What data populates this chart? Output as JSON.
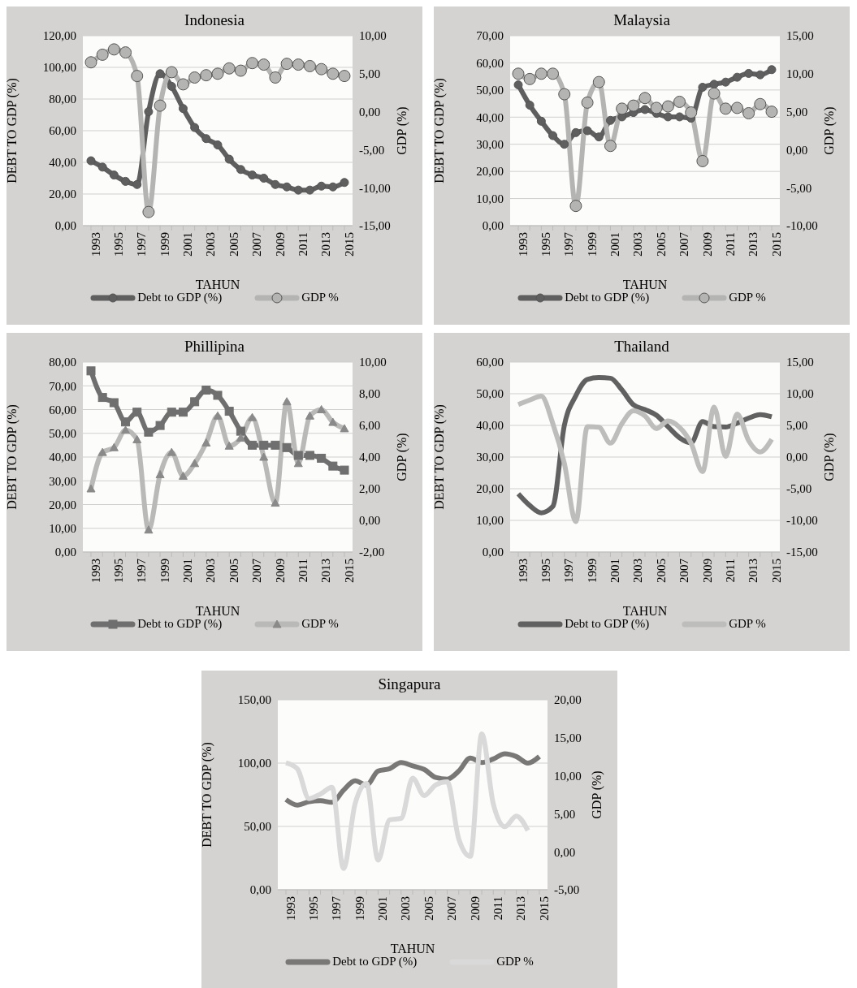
{
  "chart_data": [
    {
      "type": "line",
      "title": "Indonesia",
      "xlabel": "TAHUN",
      "ylabel": "DEBT TO GDP (%)",
      "y2label": "GDP (%)",
      "grid": "y",
      "legend": "bottom",
      "categories": [
        "1993",
        null,
        "1995",
        null,
        "1997",
        null,
        "1999",
        null,
        "2001",
        null,
        "2003",
        null,
        "2005",
        null,
        "2007",
        null,
        "2009",
        null,
        "2011",
        null,
        "2013",
        null,
        "2015"
      ],
      "ylim": [
        0,
        120
      ],
      "yticks": [
        {
          "value": 0,
          "label": "0,00"
        },
        {
          "value": 20,
          "label": "20,00"
        },
        {
          "value": 40,
          "label": "40,00"
        },
        {
          "value": 60,
          "label": "60,00"
        },
        {
          "value": 80,
          "label": "80,00"
        },
        {
          "value": 100,
          "label": "100,00"
        },
        {
          "value": 120,
          "label": "120,00"
        }
      ],
      "y2lim": [
        -15,
        10
      ],
      "y2ticks": [
        {
          "value": -15,
          "label": "-15,00"
        },
        {
          "value": -10,
          "label": "-10,00"
        },
        {
          "value": -5,
          "label": "-5,00"
        },
        {
          "value": 0,
          "label": "0,00"
        },
        {
          "value": 5,
          "label": "5,00"
        },
        {
          "value": 10,
          "label": "10,00"
        }
      ],
      "series": [
        {
          "name": "Debt to GDP (%)",
          "color": "#5f5f5f",
          "marker": "circle",
          "values": [
            41,
            37,
            32,
            28,
            26,
            72,
            96,
            88,
            74,
            62,
            55,
            51,
            42,
            35.5,
            32,
            30,
            26,
            24.5,
            22.5,
            22.5,
            25,
            24.5,
            27.3
          ]
        },
        {
          "name": "GDP %",
          "color": "#b4b5b3",
          "marker": "circle",
          "axis": "y2",
          "values": [
            6.5,
            7.5,
            8.2,
            7.8,
            4.7,
            -13.2,
            0.8,
            5.2,
            3.6,
            4.5,
            4.8,
            5,
            5.7,
            5.4,
            6.4,
            6.2,
            4.5,
            6.3,
            6.2,
            6,
            5.6,
            5,
            4.7
          ]
        }
      ]
    },
    {
      "type": "line",
      "title": "Malaysia",
      "xlabel": "TAHUN",
      "ylabel": "DEBT TO GDP (%)",
      "y2label": "GDP (%)",
      "grid": "y",
      "legend": "bottom",
      "categories": [
        "1993",
        null,
        "1995",
        null,
        "1997",
        null,
        "1999",
        null,
        "2001",
        null,
        "2003",
        null,
        "2005",
        null,
        "2007",
        null,
        "2009",
        null,
        "2011",
        null,
        "2013",
        null,
        "2015"
      ],
      "ylim": [
        0,
        70
      ],
      "yticks": [
        {
          "value": 0,
          "label": "0,00"
        },
        {
          "value": 10,
          "label": "10,00"
        },
        {
          "value": 20,
          "label": "20,00"
        },
        {
          "value": 30,
          "label": "30,00"
        },
        {
          "value": 40,
          "label": "40,00"
        },
        {
          "value": 50,
          "label": "50,00"
        },
        {
          "value": 60,
          "label": "60,00"
        },
        {
          "value": 70,
          "label": "70,00"
        }
      ],
      "y2lim": [
        -10,
        15
      ],
      "y2ticks": [
        {
          "value": -10,
          "label": "-10,00"
        },
        {
          "value": -5,
          "label": "-5,00"
        },
        {
          "value": 0,
          "label": "0,00"
        },
        {
          "value": 5,
          "label": "5,00"
        },
        {
          "value": 10,
          "label": "10,00"
        },
        {
          "value": 15,
          "label": "15,00"
        }
      ],
      "series": [
        {
          "name": "Debt to GDP (%)",
          "color": "#5f5f5f",
          "marker": "circle",
          "values": [
            51.9,
            44.4,
            38.5,
            33.2,
            30,
            34.3,
            35,
            32.7,
            38.8,
            40.1,
            41.7,
            42.8,
            41.4,
            40.1,
            40.1,
            39.6,
            51,
            52.1,
            52.9,
            54.7,
            56.1,
            55.6,
            57.5
          ]
        },
        {
          "name": "GDP %",
          "color": "#b4b5b3",
          "marker": "circle",
          "axis": "y2",
          "values": [
            10,
            9.3,
            10,
            10,
            7.3,
            -7.4,
            6.2,
            8.9,
            0.5,
            5.4,
            5.8,
            6.8,
            5.5,
            5.7,
            6.3,
            4.9,
            -1.5,
            7.4,
            5.4,
            5.5,
            4.8,
            6,
            5
          ]
        }
      ]
    },
    {
      "type": "line",
      "title": "Phillipina",
      "xlabel": "TAHUN",
      "ylabel": "DEBT TO GDP (%)",
      "y2label": "GDP (%)",
      "grid": "y",
      "legend": "bottom",
      "categories": [
        "1993",
        null,
        "1995",
        null,
        "1997",
        null,
        "1999",
        null,
        "2001",
        null,
        "2003",
        null,
        "2005",
        null,
        "2007",
        null,
        "2009",
        null,
        "2011",
        null,
        "2013",
        null,
        "2015"
      ],
      "ylim": [
        0,
        80
      ],
      "yticks": [
        {
          "value": 0,
          "label": "0,00"
        },
        {
          "value": 10,
          "label": "10,00"
        },
        {
          "value": 20,
          "label": "20,00"
        },
        {
          "value": 30,
          "label": "30,00"
        },
        {
          "value": 40,
          "label": "40,00"
        },
        {
          "value": 50,
          "label": "50,00"
        },
        {
          "value": 60,
          "label": "60,00"
        },
        {
          "value": 70,
          "label": "70,00"
        },
        {
          "value": 80,
          "label": "80,00"
        }
      ],
      "y2lim": [
        -2,
        10
      ],
      "y2ticks": [
        {
          "value": -2,
          "label": "-2,00"
        },
        {
          "value": 0,
          "label": "0,00"
        },
        {
          "value": 2,
          "label": "2,00"
        },
        {
          "value": 4,
          "label": "4,00"
        },
        {
          "value": 6,
          "label": "6,00"
        },
        {
          "value": 8,
          "label": "8,00"
        },
        {
          "value": 10,
          "label": "10,00"
        }
      ],
      "series": [
        {
          "name": "Debt to GDP (%)",
          "color": "#6f6f6f",
          "marker": "square",
          "values": [
            76.3,
            65.1,
            62.9,
            54.8,
            58.9,
            50.5,
            53.3,
            58.9,
            58.9,
            63.3,
            68.2,
            66,
            59.3,
            50.9,
            45,
            45,
            45,
            44,
            40.7,
            40.7,
            39.5,
            36.2,
            34.5
          ]
        },
        {
          "name": "GDP %",
          "color": "#b9bab8",
          "marker": "triangle",
          "axis": "y2",
          "values": [
            2,
            4.3,
            4.6,
            5.7,
            5.1,
            -0.6,
            2.9,
            4.3,
            2.8,
            3.6,
            4.9,
            6.6,
            4.7,
            5.2,
            6.5,
            4,
            1.1,
            7.5,
            3.6,
            6.6,
            7,
            6.2,
            5.8
          ]
        }
      ]
    },
    {
      "type": "line",
      "title": "Thailand",
      "xlabel": "TAHUN",
      "ylabel": "DEBT TO GDP (%)",
      "y2label": "GDP (%)",
      "grid": "y",
      "legend": "bottom",
      "categories": [
        "1993",
        null,
        "1995",
        null,
        "1997",
        null,
        "1999",
        null,
        "2001",
        null,
        "2003",
        null,
        "2005",
        null,
        "2007",
        null,
        "2009",
        null,
        "2011",
        null,
        "2013",
        null,
        "2015"
      ],
      "ylim": [
        0,
        60
      ],
      "yticks": [
        {
          "value": 0,
          "label": "0,00"
        },
        {
          "value": 10,
          "label": "10,00"
        },
        {
          "value": 20,
          "label": "20,00"
        },
        {
          "value": 30,
          "label": "30,00"
        },
        {
          "value": 40,
          "label": "40,00"
        },
        {
          "value": 50,
          "label": "50,00"
        },
        {
          "value": 60,
          "label": "60,00"
        }
      ],
      "y2lim": [
        -15,
        15
      ],
      "y2ticks": [
        {
          "value": -15,
          "label": "-15,00"
        },
        {
          "value": -10,
          "label": "-10,00"
        },
        {
          "value": -5,
          "label": "-5,00"
        },
        {
          "value": 0,
          "label": "0,00"
        },
        {
          "value": 5,
          "label": "5,00"
        },
        {
          "value": 10,
          "label": "10,00"
        },
        {
          "value": 15,
          "label": "15,00"
        }
      ],
      "series": [
        {
          "name": "Debt to GDP (%)",
          "color": "#616161",
          "values": [
            18.4,
            14.7,
            12.4,
            14.4,
            40,
            49.4,
            54.5,
            55.1,
            54.9,
            51.2,
            46.5,
            45,
            43.2,
            39.6,
            36.1,
            34.5,
            41.2,
            39.6,
            39.5,
            40.7,
            42.3,
            43.4,
            42.7
          ]
        },
        {
          "name": "GDP %",
          "color": "#bdbebc",
          "axis": "y2",
          "values": [
            8.3,
            9,
            9.6,
            5.3,
            -1,
            -10.2,
            4.8,
            4.7,
            2.2,
            5.3,
            7.3,
            6.5,
            4.5,
            5.7,
            4.7,
            2.2,
            -2.3,
            7.9,
            0.1,
            6.8,
            2.6,
            0.8,
            2.8
          ]
        }
      ]
    },
    {
      "type": "line",
      "title": "Singapura",
      "xlabel": "TAHUN",
      "ylabel": "DEBT TO GDP (%)",
      "y2label": "GDP (%)",
      "grid": "y",
      "legend": "bottom",
      "categories": [
        "1993",
        null,
        "1995",
        null,
        "1997",
        null,
        "1999",
        null,
        "2001",
        null,
        "2003",
        null,
        "2005",
        null,
        "2007",
        null,
        "2009",
        null,
        "2011",
        null,
        "2013",
        null,
        "2015"
      ],
      "ylim": [
        0,
        150
      ],
      "yticks": [
        {
          "value": 0,
          "label": "0,00"
        },
        {
          "value": 50,
          "label": "50,00"
        },
        {
          "value": 100,
          "label": "100,00"
        },
        {
          "value": 150,
          "label": "150,00"
        }
      ],
      "y2lim": [
        -5,
        20
      ],
      "y2ticks": [
        {
          "value": -5,
          "label": "-5,00"
        },
        {
          "value": 0,
          "label": "0,00"
        },
        {
          "value": 5,
          "label": "5,00"
        },
        {
          "value": 10,
          "label": "10,00"
        },
        {
          "value": 15,
          "label": "15,00"
        },
        {
          "value": 20,
          "label": "20,00"
        }
      ],
      "series": [
        {
          "name": "Debt to GDP (%)",
          "color": "#7a7777",
          "values": [
            71.2,
            66.8,
            69.5,
            70.3,
            69,
            78.6,
            86,
            82.7,
            93.7,
            95.6,
            100.5,
            97.8,
            95,
            88.7,
            87.4,
            93.7,
            104,
            100.5,
            103.3,
            107.4,
            105.2,
            100,
            105.2
          ]
        },
        {
          "name": "GDP %",
          "color": "#d9d9d9",
          "axis": "y2",
          "values": [
            11.7,
            10.9,
            7,
            7.6,
            8.5,
            -2.2,
            6.3,
            9,
            -1.1,
            4.2,
            4.4,
            9.7,
            7.4,
            8.8,
            9.2,
            1.7,
            -0.6,
            15.5,
            6.3,
            3.3,
            4.7,
            2.8,
            null
          ]
        }
      ]
    }
  ]
}
